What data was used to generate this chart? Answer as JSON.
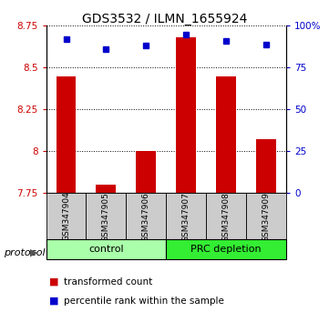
{
  "title": "GDS3532 / ILMN_1655924",
  "samples": [
    "GSM347904",
    "GSM347905",
    "GSM347906",
    "GSM347907",
    "GSM347908",
    "GSM347909"
  ],
  "red_values": [
    8.45,
    7.8,
    8.0,
    8.68,
    8.45,
    8.07
  ],
  "blue_values": [
    92,
    86,
    88,
    95,
    91,
    89
  ],
  "ylim_left": [
    7.75,
    8.75
  ],
  "ylim_right": [
    0,
    100
  ],
  "yticks_left": [
    7.75,
    8.0,
    8.25,
    8.5,
    8.75
  ],
  "yticks_right": [
    0,
    25,
    50,
    75,
    100
  ],
  "ytick_labels_left": [
    "7.75",
    "8",
    "8.25",
    "8.5",
    "8.75"
  ],
  "ytick_labels_right": [
    "0",
    "25",
    "50",
    "75",
    "100%"
  ],
  "groups": [
    {
      "label": "control",
      "indices": [
        0,
        1,
        2
      ],
      "color": "#aaffaa"
    },
    {
      "label": "PRC depletion",
      "indices": [
        3,
        4,
        5
      ],
      "color": "#33ee33"
    }
  ],
  "bar_color": "#cc0000",
  "dot_color": "#0000cc",
  "bar_bottom": 7.75,
  "bar_width": 0.5,
  "sample_box_color": "#cccccc",
  "background_color": "#ffffff",
  "title_fontsize": 10,
  "tick_label_fontsize": 7.5,
  "sample_label_fontsize": 6.5,
  "legend_fontsize": 7.5,
  "group_label_fontsize": 8,
  "protocol_label": "protocol",
  "legend_items": [
    "transformed count",
    "percentile rank within the sample"
  ]
}
